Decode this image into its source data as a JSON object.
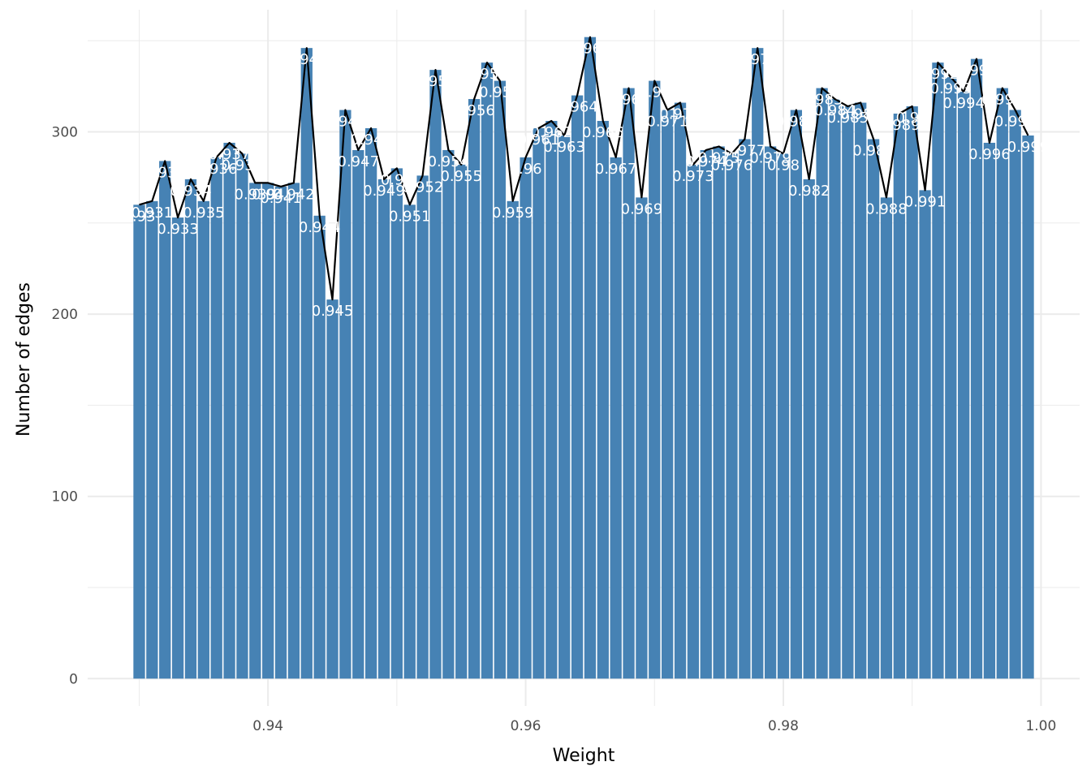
{
  "chart_data": {
    "type": "bar",
    "xlabel": "Weight",
    "ylabel": "Number of edges",
    "xlim": [
      0.926,
      1.003
    ],
    "ylim": [
      -15,
      367
    ],
    "x_ticks": [
      0.94,
      0.96,
      0.98,
      1.0
    ],
    "x_tick_labels": [
      "0.94",
      "0.96",
      "0.98",
      "1.00"
    ],
    "y_ticks": [
      0,
      100,
      200,
      300
    ],
    "y_tick_labels": [
      "0",
      "100",
      "200",
      "300"
    ],
    "grid": true,
    "bar_color": "#4682b4",
    "line_color": "#000000",
    "label_color": "#ffffff",
    "x": [
      0.93,
      0.931,
      0.932,
      0.933,
      0.934,
      0.935,
      0.936,
      0.937,
      0.938,
      0.939,
      0.94,
      0.941,
      0.942,
      0.943,
      0.944,
      0.945,
      0.946,
      0.947,
      0.948,
      0.949,
      0.95,
      0.951,
      0.952,
      0.953,
      0.954,
      0.955,
      0.956,
      0.957,
      0.958,
      0.959,
      0.96,
      0.961,
      0.962,
      0.963,
      0.964,
      0.965,
      0.966,
      0.967,
      0.968,
      0.969,
      0.97,
      0.971,
      0.972,
      0.973,
      0.974,
      0.975,
      0.976,
      0.977,
      0.978,
      0.979,
      0.98,
      0.981,
      0.982,
      0.983,
      0.984,
      0.985,
      0.986,
      0.987,
      0.988,
      0.989,
      0.99,
      0.991,
      0.992,
      0.993,
      0.994,
      0.995,
      0.996,
      0.997,
      0.998,
      0.999
    ],
    "values": [
      260,
      262,
      284,
      253,
      274,
      262,
      286,
      294,
      288,
      272,
      272,
      270,
      272,
      346,
      254,
      208,
      312,
      290,
      302,
      274,
      280,
      260,
      276,
      334,
      290,
      282,
      318,
      338,
      328,
      262,
      286,
      302,
      306,
      298,
      320,
      352,
      306,
      286,
      324,
      264,
      328,
      312,
      316,
      282,
      290,
      292,
      288,
      296,
      346,
      292,
      288,
      312,
      274,
      324,
      318,
      314,
      316,
      296,
      264,
      310,
      314,
      268,
      338,
      330,
      322,
      340,
      294,
      324,
      312,
      298
    ],
    "labels": [
      "0.93",
      "0.931",
      "0.932",
      "0.933",
      "0.934",
      "0.935",
      "0.936",
      "0.937",
      "0.938",
      "0.939",
      "0.94",
      "0.941",
      "0.942",
      "0.943",
      "0.944",
      "0.945",
      "0.946",
      "0.947",
      "0.948",
      "0.949",
      "0.95",
      "0.951",
      "0.952",
      "0.953",
      "0.954",
      "0.955",
      "0.956",
      "0.957",
      "0.958",
      "0.959",
      "0.96",
      "0.961",
      "0.962",
      "0.963",
      "0.964",
      "0.965",
      "0.966",
      "0.967",
      "0.968",
      "0.969",
      "0.97",
      "0.971",
      "0.972",
      "0.973",
      "0.974",
      "0.975",
      "0.976",
      "0.977",
      "0.978",
      "0.979",
      "0.98",
      "0.981",
      "0.982",
      "0.983",
      "0.984",
      "0.985",
      "0.986",
      "0.987",
      "0.988",
      "0.989",
      "0.99",
      "0.991",
      "0.992",
      "0.993",
      "0.994",
      "0.995",
      "0.996",
      "0.997",
      "0.998",
      "0.999"
    ]
  }
}
